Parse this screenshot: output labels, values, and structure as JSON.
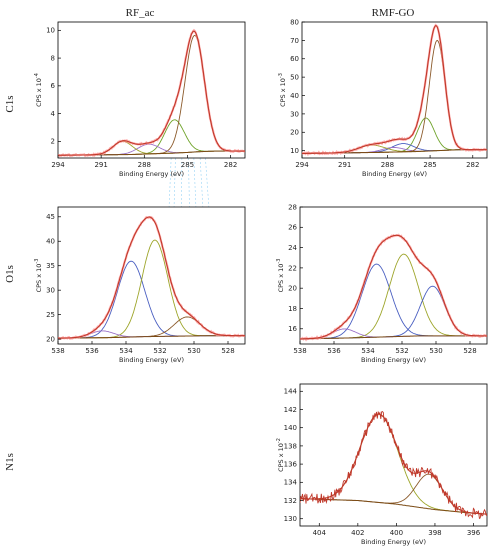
{
  "column_titles": [
    "RF_ac",
    "RMF-GO"
  ],
  "row_labels": [
    "C1s",
    "O1s",
    "N1s"
  ],
  "colors": {
    "raw": "#ff9a9a",
    "envelope": "#c0392b",
    "background": "#7a4a14",
    "green": "#6fa32a",
    "blue": "#4a5fc1",
    "purple": "#9b72c9",
    "brown": "#8b5a2b",
    "olive": "#9da52a",
    "dashed": "#9ad4f5"
  },
  "chart_data": [
    {
      "id": "c1s-rf",
      "type": "line",
      "xlabel": "Binding Energy (eV)",
      "ylabel": "CPS x 10",
      "ylabel_exp": "-4",
      "xlim": [
        294,
        281
      ],
      "ylim": [
        0.8,
        10.6
      ],
      "xticks": [
        294,
        291,
        288,
        285,
        282
      ],
      "yticks": [
        2,
        4,
        6,
        8,
        10
      ],
      "baseline": [
        [
          294,
          1.0
        ],
        [
          289,
          1.05
        ],
        [
          286,
          1.15
        ],
        [
          285,
          1.2
        ],
        [
          284.3,
          1.25
        ],
        [
          283,
          1.3
        ],
        [
          281,
          1.3
        ]
      ],
      "components": [
        {
          "color_key": "green",
          "center": 285.9,
          "height": 2.4,
          "fwhm": 1.6
        },
        {
          "color_key": "purple",
          "center": 287.7,
          "height": 0.7,
          "fwhm": 1.8
        },
        {
          "color_key": "olive",
          "center": 289.5,
          "height": 0.95,
          "fwhm": 1.6
        },
        {
          "color_key": "brown",
          "center": 284.5,
          "height": 8.4,
          "fwhm": 1.6
        }
      ]
    },
    {
      "id": "c1s-rmf",
      "type": "line",
      "xlabel": "Binding Energy (eV)",
      "ylabel": "CPS x 10",
      "ylabel_exp": "-3",
      "xlim": [
        294,
        281
      ],
      "ylim": [
        6,
        80
      ],
      "xticks": [
        294,
        291,
        288,
        285,
        282
      ],
      "yticks": [
        10,
        20,
        30,
        40,
        50,
        60,
        70,
        80
      ],
      "baseline": [
        [
          294,
          8.5
        ],
        [
          289,
          9
        ],
        [
          286,
          9.5
        ],
        [
          284.5,
          10
        ],
        [
          283,
          10.5
        ],
        [
          281,
          10.5
        ]
      ],
      "components": [
        {
          "color_key": "green",
          "center": 285.3,
          "height": 18,
          "fwhm": 1.4
        },
        {
          "color_key": "blue",
          "center": 286.9,
          "height": 4.5,
          "fwhm": 1.8
        },
        {
          "color_key": "purple",
          "center": 287.6,
          "height": 2.5,
          "fwhm": 1.8
        },
        {
          "color_key": "olive",
          "center": 289.1,
          "height": 4,
          "fwhm": 2.2
        },
        {
          "color_key": "brown",
          "center": 284.5,
          "height": 60,
          "fwhm": 1.3
        }
      ]
    },
    {
      "id": "o1s-rf",
      "type": "line",
      "xlabel": "Binding Energy (eV)",
      "ylabel": "CPS x 10",
      "ylabel_exp": "-3",
      "xlim": [
        538,
        527
      ],
      "ylim": [
        19,
        47
      ],
      "xticks": [
        538,
        536,
        534,
        532,
        530,
        528
      ],
      "yticks": [
        20,
        25,
        30,
        35,
        40,
        45
      ],
      "baseline": [
        [
          538,
          20.2
        ],
        [
          535,
          20.3
        ],
        [
          533,
          20.5
        ],
        [
          531,
          20.6
        ],
        [
          529,
          20.7
        ],
        [
          527,
          20.7
        ]
      ],
      "components": [
        {
          "color_key": "blue",
          "center": 533.7,
          "height": 15.5,
          "fwhm": 1.9
        },
        {
          "color_key": "olive",
          "center": 532.3,
          "height": 19.7,
          "fwhm": 1.8
        },
        {
          "color_key": "brown",
          "center": 530.4,
          "height": 3.9,
          "fwhm": 1.8
        },
        {
          "color_key": "purple",
          "center": 535.4,
          "height": 1.4,
          "fwhm": 1.6
        }
      ]
    },
    {
      "id": "o1s-rmf",
      "type": "line",
      "xlabel": "Binding Energy (eV)",
      "ylabel": "CPS x 10",
      "ylabel_exp": "-3",
      "xlim": [
        538,
        527
      ],
      "ylim": [
        14.5,
        28
      ],
      "xticks": [
        538,
        536,
        534,
        532,
        530,
        528
      ],
      "yticks": [
        16,
        18,
        20,
        22,
        24,
        26,
        28
      ],
      "baseline": [
        [
          538,
          15.0
        ],
        [
          535,
          15.1
        ],
        [
          533,
          15.2
        ],
        [
          531,
          15.3
        ],
        [
          529,
          15.3
        ],
        [
          527,
          15.3
        ]
      ],
      "components": [
        {
          "color_key": "blue",
          "center": 533.5,
          "height": 7.2,
          "fwhm": 2.0
        },
        {
          "color_key": "olive",
          "center": 531.9,
          "height": 8.1,
          "fwhm": 2.0
        },
        {
          "color_key": "blue",
          "center": 530.2,
          "height": 4.9,
          "fwhm": 1.7
        },
        {
          "color_key": "purple",
          "center": 535.4,
          "height": 0.9,
          "fwhm": 1.6
        }
      ]
    },
    {
      "id": "n1s-rmf",
      "type": "line",
      "xlabel": "Binding Energy (eV)",
      "ylabel": "CPS x 10",
      "ylabel_exp": "-2",
      "xlim": [
        405,
        395.3
      ],
      "ylim": [
        129.2,
        144.8
      ],
      "xticks": [
        404,
        402,
        400,
        398,
        396
      ],
      "yticks": [
        130,
        132,
        134,
        136,
        138,
        140,
        142,
        144
      ],
      "baseline": [
        [
          405,
          132.2
        ],
        [
          402,
          132.0
        ],
        [
          400,
          131.6
        ],
        [
          398,
          131.0
        ],
        [
          396,
          130.6
        ],
        [
          395.3,
          130.5
        ]
      ],
      "components": [
        {
          "color_key": "olive",
          "center": 400.9,
          "height": 9.7,
          "fwhm": 2.3
        },
        {
          "color_key": "brown",
          "center": 398.3,
          "height": 3.8,
          "fwhm": 1.6
        }
      ],
      "noise": 0.55
    }
  ]
}
